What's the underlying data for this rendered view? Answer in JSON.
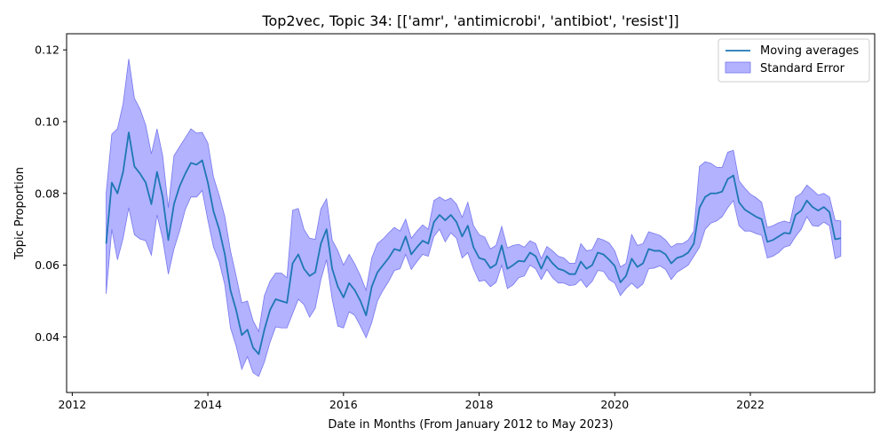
{
  "chart_data": {
    "type": "line",
    "title": "Top2vec, Topic 34: [['amr', 'antimicrobi', 'antibiot', 'resist']]",
    "xlabel": "Date in Months (From January 2012 to May 2023)",
    "ylabel": "Topic Proportion",
    "xlim": [
      "2011-12-01",
      "2023-11-01"
    ],
    "ylim": [
      0.0245,
      0.1245
    ],
    "x_ticks": [
      "2012",
      "2014",
      "2016",
      "2018",
      "2020",
      "2022"
    ],
    "y_ticks": [
      "0.04",
      "0.06",
      "0.08",
      "0.10",
      "0.12"
    ],
    "legend_position": "top-right",
    "colors": {
      "line": "#1f77b4",
      "band": "#0000ff",
      "band_edge": "#7777ee"
    },
    "series": [
      {
        "name": "Moving averages",
        "kind": "line",
        "x": [
          "2012-07",
          "2012-08",
          "2012-09",
          "2012-10",
          "2012-11",
          "2012-12",
          "2013-01",
          "2013-02",
          "2013-03",
          "2013-04",
          "2013-05",
          "2013-06",
          "2013-07",
          "2013-08",
          "2013-09",
          "2013-10",
          "2013-11",
          "2013-12",
          "2014-01",
          "2014-02",
          "2014-03",
          "2014-04",
          "2014-05",
          "2014-06",
          "2014-07",
          "2014-08",
          "2014-09",
          "2014-10",
          "2014-11",
          "2014-12",
          "2015-01",
          "2015-02",
          "2015-03",
          "2015-04",
          "2015-05",
          "2015-06",
          "2015-07",
          "2015-08",
          "2015-09",
          "2015-10",
          "2015-11",
          "2015-12",
          "2016-01",
          "2016-02",
          "2016-03",
          "2016-04",
          "2016-05",
          "2016-06",
          "2016-07",
          "2016-08",
          "2016-09",
          "2016-10",
          "2016-11",
          "2016-12",
          "2017-01",
          "2017-02",
          "2017-03",
          "2017-04",
          "2017-05",
          "2017-06",
          "2017-07",
          "2017-08",
          "2017-09",
          "2017-10",
          "2017-11",
          "2017-12",
          "2018-01",
          "2018-02",
          "2018-03",
          "2018-04",
          "2018-05",
          "2018-06",
          "2018-07",
          "2018-08",
          "2018-09",
          "2018-10",
          "2018-11",
          "2018-12",
          "2019-01",
          "2019-02",
          "2019-03",
          "2019-04",
          "2019-05",
          "2019-06",
          "2019-07",
          "2019-08",
          "2019-09",
          "2019-10",
          "2019-11",
          "2019-12",
          "2020-01",
          "2020-02",
          "2020-03",
          "2020-04",
          "2020-05",
          "2020-06",
          "2020-07",
          "2020-08",
          "2020-09",
          "2020-10",
          "2020-11",
          "2020-12",
          "2021-01",
          "2021-02",
          "2021-03",
          "2021-04",
          "2021-05",
          "2021-06",
          "2021-07",
          "2021-08",
          "2021-09",
          "2021-10",
          "2021-11",
          "2021-12",
          "2022-01",
          "2022-02",
          "2022-03",
          "2022-04",
          "2022-05",
          "2022-06",
          "2022-07",
          "2022-08",
          "2022-09",
          "2022-10",
          "2022-11",
          "2022-12",
          "2023-01",
          "2023-02",
          "2023-03",
          "2023-04",
          "2023-05"
        ],
        "y": [
          0.066,
          0.083,
          0.08,
          0.086,
          0.097,
          0.0875,
          0.0855,
          0.083,
          0.077,
          0.086,
          0.079,
          0.067,
          0.077,
          0.082,
          0.0855,
          0.0885,
          0.088,
          0.0892,
          0.083,
          0.075,
          0.07,
          0.063,
          0.053,
          0.0475,
          0.0405,
          0.042,
          0.037,
          0.0352,
          0.042,
          0.0475,
          0.0505,
          0.05,
          0.0495,
          0.0605,
          0.063,
          0.059,
          0.057,
          0.058,
          0.066,
          0.07,
          0.059,
          0.054,
          0.051,
          0.055,
          0.053,
          0.05,
          0.046,
          0.054,
          0.058,
          0.06,
          0.062,
          0.0645,
          0.064,
          0.068,
          0.063,
          0.065,
          0.0668,
          0.066,
          0.072,
          0.074,
          0.0725,
          0.074,
          0.072,
          0.068,
          0.071,
          0.065,
          0.062,
          0.0615,
          0.0592,
          0.0602,
          0.0655,
          0.059,
          0.06,
          0.0612,
          0.061,
          0.0635,
          0.0625,
          0.059,
          0.0625,
          0.0605,
          0.059,
          0.0585,
          0.0575,
          0.0575,
          0.061,
          0.059,
          0.06,
          0.0635,
          0.063,
          0.0615,
          0.0598,
          0.0552,
          0.057,
          0.0618,
          0.0595,
          0.0605,
          0.0645,
          0.064,
          0.064,
          0.063,
          0.0605,
          0.062,
          0.0625,
          0.0635,
          0.066,
          0.076,
          0.079,
          0.08,
          0.08,
          0.0805,
          0.084,
          0.085,
          0.0775,
          0.0755,
          0.0745,
          0.0735,
          0.0728,
          0.0665,
          0.067,
          0.068,
          0.069,
          0.0688,
          0.074,
          0.0752,
          0.078,
          0.0762,
          0.0752,
          0.0762,
          0.0748,
          0.0672,
          0.0675
        ]
      },
      {
        "name": "Standard Error",
        "kind": "band",
        "lower": [
          0.052,
          0.07,
          0.0615,
          0.0675,
          0.076,
          0.0685,
          0.0673,
          0.0668,
          0.0628,
          0.074,
          0.0673,
          0.0575,
          0.0645,
          0.0695,
          0.0755,
          0.079,
          0.079,
          0.0808,
          0.0725,
          0.065,
          0.061,
          0.0545,
          0.0425,
          0.0375,
          0.031,
          0.0345,
          0.03,
          0.029,
          0.033,
          0.0385,
          0.0428,
          0.0425,
          0.0425,
          0.0465,
          0.0505,
          0.049,
          0.0455,
          0.048,
          0.056,
          0.0615,
          0.0505,
          0.043,
          0.0425,
          0.047,
          0.046,
          0.043,
          0.0398,
          0.044,
          0.05,
          0.053,
          0.0555,
          0.0585,
          0.059,
          0.063,
          0.0588,
          0.061,
          0.063,
          0.0625,
          0.068,
          0.07,
          0.0665,
          0.069,
          0.0675,
          0.062,
          0.0635,
          0.059,
          0.0555,
          0.0558,
          0.054,
          0.0552,
          0.06,
          0.0535,
          0.0545,
          0.0565,
          0.057,
          0.06,
          0.059,
          0.056,
          0.0588,
          0.0565,
          0.055,
          0.055,
          0.0543,
          0.0545,
          0.056,
          0.0538,
          0.0555,
          0.0585,
          0.0583,
          0.056,
          0.055,
          0.0515,
          0.0535,
          0.055,
          0.0535,
          0.0548,
          0.059,
          0.0592,
          0.0598,
          0.0588,
          0.056,
          0.058,
          0.059,
          0.06,
          0.0625,
          0.065,
          0.07,
          0.0717,
          0.0723,
          0.0735,
          0.076,
          0.078,
          0.071,
          0.0695,
          0.0695,
          0.0688,
          0.0683,
          0.062,
          0.0625,
          0.0635,
          0.065,
          0.0655,
          0.068,
          0.07,
          0.0735,
          0.071,
          0.0708,
          0.072,
          0.071,
          0.0618,
          0.0625
        ],
        "upper": [
          0.08,
          0.0965,
          0.098,
          0.105,
          0.1175,
          0.1065,
          0.1035,
          0.099,
          0.091,
          0.098,
          0.0905,
          0.076,
          0.0905,
          0.093,
          0.0955,
          0.098,
          0.0968,
          0.097,
          0.094,
          0.0845,
          0.0795,
          0.0735,
          0.064,
          0.057,
          0.0495,
          0.05,
          0.0445,
          0.0415,
          0.0515,
          0.0555,
          0.0578,
          0.0578,
          0.0565,
          0.0753,
          0.0758,
          0.07,
          0.0675,
          0.0672,
          0.0757,
          0.0785,
          0.067,
          0.064,
          0.06,
          0.063,
          0.0603,
          0.057,
          0.053,
          0.062,
          0.066,
          0.0673,
          0.069,
          0.0705,
          0.0695,
          0.0728,
          0.0675,
          0.0695,
          0.0712,
          0.07,
          0.078,
          0.079,
          0.078,
          0.0787,
          0.077,
          0.0733,
          0.0775,
          0.071,
          0.0685,
          0.0678,
          0.0645,
          0.0655,
          0.0708,
          0.0648,
          0.0655,
          0.0658,
          0.065,
          0.0668,
          0.066,
          0.0618,
          0.0652,
          0.064,
          0.0625,
          0.062,
          0.0605,
          0.0605,
          0.066,
          0.064,
          0.0643,
          0.0675,
          0.067,
          0.0662,
          0.064,
          0.0595,
          0.0605,
          0.0685,
          0.0655,
          0.066,
          0.0693,
          0.0688,
          0.0683,
          0.067,
          0.065,
          0.066,
          0.066,
          0.067,
          0.0695,
          0.0875,
          0.0888,
          0.0884,
          0.0873,
          0.0872,
          0.0915,
          0.092,
          0.0835,
          0.0815,
          0.0798,
          0.0788,
          0.0775,
          0.0705,
          0.071,
          0.0718,
          0.0723,
          0.0718,
          0.079,
          0.08,
          0.0823,
          0.081,
          0.0795,
          0.08,
          0.079,
          0.0725,
          0.0723
        ]
      }
    ]
  }
}
